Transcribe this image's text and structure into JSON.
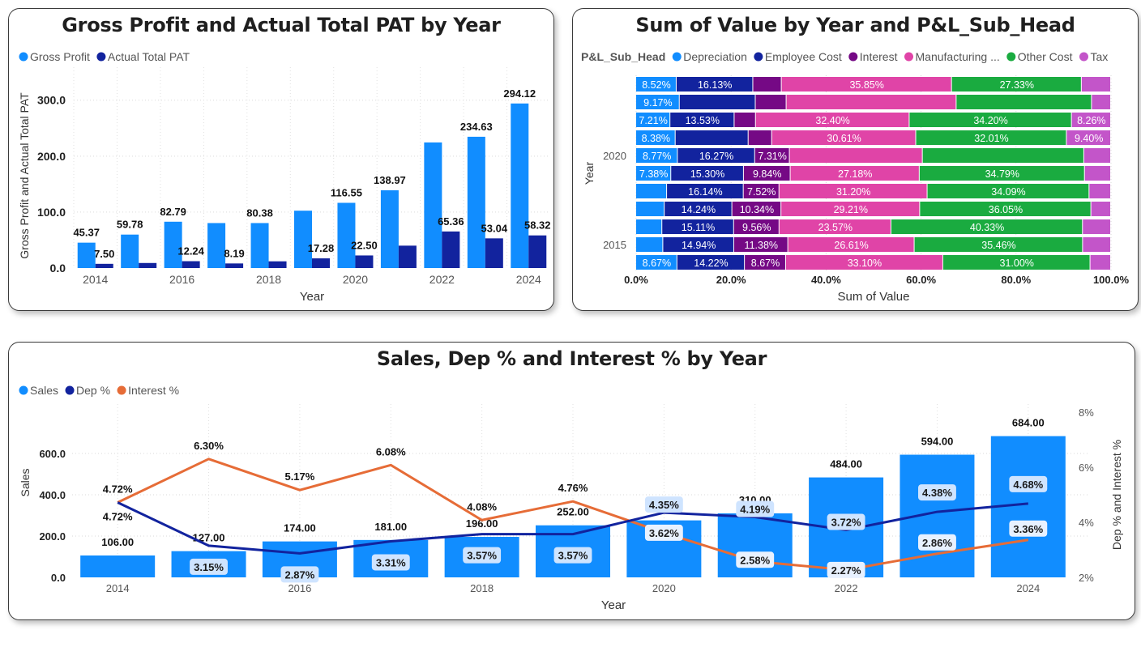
{
  "chart_data": [
    {
      "type": "bar",
      "title": "Gross Profit and Actual Total PAT by Year",
      "xlabel": "Year",
      "ylabel": "Gross Profit and Actual Total PAT",
      "categories": [
        "2014",
        "2015",
        "2016",
        "2017",
        "2018",
        "2019",
        "2020",
        "2021",
        "2022",
        "2023",
        "2024"
      ],
      "x_ticks": [
        "2014",
        "2016",
        "2018",
        "2020",
        "2022",
        "2024"
      ],
      "y_ticks": [
        "0.0",
        "100.0",
        "200.0",
        "300.0"
      ],
      "ylim": [
        0,
        330
      ],
      "series": [
        {
          "name": "Gross Profit",
          "color": "#118DFF",
          "values": [
            45.37,
            59.78,
            82.79,
            80.38,
            80.38,
            102.5,
            116.55,
            138.97,
            224.5,
            234.63,
            294.12
          ]
        },
        {
          "name": "Actual Total PAT",
          "color": "#12239E",
          "values": [
            7.5,
            9.0,
            12.24,
            8.19,
            12.0,
            17.28,
            22.5,
            40.0,
            65.36,
            53.04,
            58.32
          ]
        }
      ],
      "data_labels": [
        {
          "category": "2014",
          "series": 0,
          "text": "45.37"
        },
        {
          "category": "2014",
          "series": 1,
          "text": "7.50"
        },
        {
          "category": "2015",
          "series": 0,
          "text": "59.78"
        },
        {
          "category": "2016",
          "series": 0,
          "text": "82.79"
        },
        {
          "category": "2016",
          "series": 1,
          "text": "12.24"
        },
        {
          "category": "2017",
          "series": 1,
          "text": "8.19"
        },
        {
          "category": "2018",
          "series": 0,
          "text": "80.38"
        },
        {
          "category": "2019",
          "series": 1,
          "text": "17.28"
        },
        {
          "category": "2020",
          "series": 0,
          "text": "116.55"
        },
        {
          "category": "2020",
          "series": 1,
          "text": "22.50"
        },
        {
          "category": "2021",
          "series": 0,
          "text": "138.97"
        },
        {
          "category": "2022",
          "series": 1,
          "text": "65.36"
        },
        {
          "category": "2023",
          "series": 0,
          "text": "234.63"
        },
        {
          "category": "2023",
          "series": 1,
          "text": "53.04"
        },
        {
          "category": "2024",
          "series": 0,
          "text": "294.12"
        },
        {
          "category": "2024",
          "series": 1,
          "text": "58.32"
        }
      ],
      "legend_position": "top-left",
      "grid": true
    },
    {
      "type": "bar",
      "orientation": "horizontal",
      "stacked": "100%",
      "title": "Sum of Value by Year and P&L_Sub_Head",
      "xlabel": "Sum of Value",
      "ylabel": "Year",
      "legend_title": "P&L_Sub_Head",
      "categories": [
        "2024",
        "2023",
        "2022",
        "2021",
        "2020",
        "2019",
        "2018",
        "2017",
        "2016",
        "2015",
        "2014"
      ],
      "y_ticks": [
        {
          "category": "2020",
          "text": "2020"
        },
        {
          "category": "2015",
          "text": "2015"
        }
      ],
      "x_ticks": [
        "0.0%",
        "20.0%",
        "40.0%",
        "60.0%",
        "80.0%",
        "100.0%"
      ],
      "series": [
        {
          "name": "Depreciation",
          "color": "#118DFF",
          "values": [
            8.52,
            9.17,
            7.21,
            8.38,
            8.77,
            7.38,
            6.5,
            6.0,
            5.5,
            5.7,
            8.67
          ]
        },
        {
          "name": "Employee Cost",
          "color": "#12239E",
          "values": [
            16.13,
            16.0,
            13.53,
            15.5,
            16.27,
            15.3,
            16.14,
            14.24,
            15.11,
            14.94,
            14.22
          ]
        },
        {
          "name": "Interest",
          "color": "#750985",
          "values": [
            6.0,
            6.5,
            4.5,
            5.0,
            7.31,
            9.84,
            7.52,
            10.34,
            9.56,
            11.38,
            8.67
          ]
        },
        {
          "name": "Manufacturing ...",
          "color": "#E044A7",
          "values": [
            35.85,
            35.8,
            32.4,
            30.61,
            28.0,
            27.18,
            31.2,
            29.21,
            23.57,
            26.61,
            33.1
          ]
        },
        {
          "name": "Other Cost",
          "color": "#1AAB40",
          "values": [
            27.33,
            28.5,
            34.2,
            32.01,
            34.0,
            34.79,
            34.09,
            36.05,
            40.33,
            35.46,
            31.0
          ]
        },
        {
          "name": "Tax",
          "color": "#C355C9",
          "values": [
            6.17,
            4.03,
            8.26,
            9.4,
            5.65,
            5.51,
            4.55,
            4.16,
            5.93,
            5.91,
            4.34
          ]
        }
      ],
      "data_labels": [
        [
          "8.52%",
          "16.13%",
          "",
          "35.85%",
          "27.33%",
          ""
        ],
        [
          "9.17%",
          "",
          "",
          "",
          "",
          ""
        ],
        [
          "7.21%",
          "13.53%",
          "",
          "32.40%",
          "34.20%",
          "8.26%"
        ],
        [
          "8.38%",
          "",
          "",
          "30.61%",
          "32.01%",
          "9.40%"
        ],
        [
          "8.77%",
          "16.27%",
          "7.31%",
          "",
          "",
          ""
        ],
        [
          "7.38%",
          "15.30%",
          "9.84%",
          "27.18%",
          "34.79%",
          ""
        ],
        [
          "",
          "16.14%",
          "7.52%",
          "31.20%",
          "34.09%",
          ""
        ],
        [
          "",
          "14.24%",
          "10.34%",
          "29.21%",
          "36.05%",
          ""
        ],
        [
          "",
          "15.11%",
          "9.56%",
          "23.57%",
          "40.33%",
          ""
        ],
        [
          "",
          "14.94%",
          "11.38%",
          "26.61%",
          "35.46%",
          ""
        ],
        [
          "8.67%",
          "14.22%",
          "8.67%",
          "33.10%",
          "31.00%",
          ""
        ]
      ],
      "xlim": [
        0,
        100
      ],
      "legend_position": "top-left",
      "grid": true
    },
    {
      "type": "bar",
      "combo": "bar-line",
      "title": "Sales, Dep % and Interest % by Year",
      "xlabel": "Year",
      "ylabel": "Sales",
      "y2label": "Dep % and Interest %",
      "categories": [
        "2014",
        "2015",
        "2016",
        "2017",
        "2018",
        "2019",
        "2020",
        "2021",
        "2022",
        "2023",
        "2024"
      ],
      "x_ticks": [
        "2014",
        "2016",
        "2018",
        "2020",
        "2022",
        "2024"
      ],
      "y_ticks": [
        "0.0",
        "200.0",
        "400.0",
        "600.0"
      ],
      "y2_ticks": [
        "2%",
        "4%",
        "6%",
        "8%"
      ],
      "ylim": [
        0,
        800
      ],
      "y2lim": [
        2,
        8
      ],
      "series": [
        {
          "name": "Sales",
          "type": "bar",
          "color": "#118DFF",
          "values": [
            106.0,
            127.0,
            174.0,
            181.0,
            196.0,
            252.0,
            276.0,
            310.0,
            484.0,
            594.0,
            684.0
          ],
          "labels": [
            "106.00",
            "127.00",
            "174.00",
            "181.00",
            "196.00",
            "252.00",
            "276.00",
            "310.00",
            "484.00",
            "594.00",
            "684.00"
          ]
        },
        {
          "name": "Dep %",
          "type": "line",
          "axis": "y2",
          "color": "#12239E",
          "values": [
            4.72,
            3.15,
            2.87,
            3.31,
            3.57,
            3.57,
            4.35,
            4.19,
            3.72,
            4.38,
            4.68
          ],
          "labels": [
            "4.72%",
            "3.15%",
            "2.87%",
            "3.31%",
            "3.57%",
            "3.57%",
            "4.35%",
            "4.19%",
            "3.72%",
            "4.38%",
            "4.68%"
          ]
        },
        {
          "name": "Interest %",
          "type": "line",
          "axis": "y2",
          "color": "#E66C37",
          "values": [
            4.72,
            6.3,
            5.17,
            6.08,
            4.08,
            4.76,
            3.62,
            2.58,
            2.27,
            2.86,
            3.36
          ],
          "labels": [
            "4.72%",
            "6.30%",
            "5.17%",
            "6.08%",
            "4.08%",
            "4.76%",
            "3.62%",
            "2.58%",
            "2.27%",
            "2.86%",
            "3.36%"
          ]
        }
      ],
      "legend_position": "top-left",
      "grid": true
    }
  ]
}
